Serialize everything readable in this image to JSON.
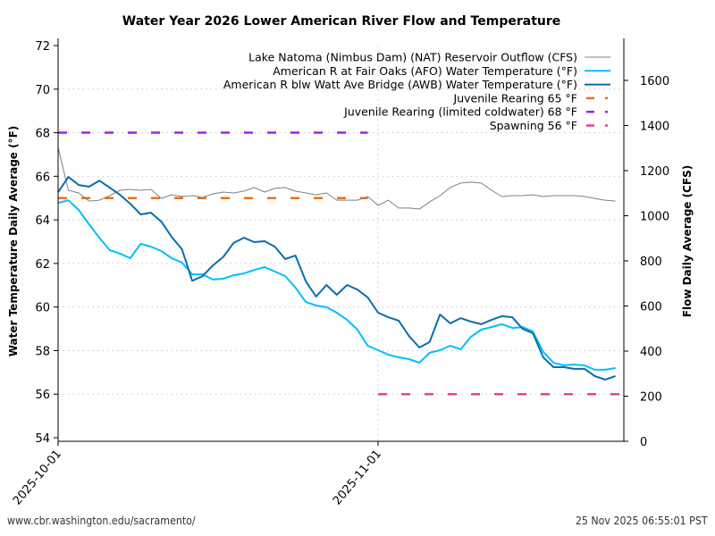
{
  "chart_data": {
    "type": "line",
    "title": "Water Year 2026 Lower American River Flow and Temperature",
    "ylabel": "Water Temperature Daily Average (°F)",
    "y2label": "Flow Daily Average (CFS)",
    "xlabel": "",
    "ylim": [
      54,
      72
    ],
    "y2lim": [
      0,
      1750
    ],
    "yticks": [
      54,
      56,
      58,
      60,
      62,
      64,
      66,
      68,
      70,
      72
    ],
    "y2ticks": [
      0,
      200,
      400,
      600,
      800,
      1000,
      1200,
      1400,
      1600
    ],
    "xticks": [
      "2025-10-01",
      "2025-11-01"
    ],
    "x_start": "2025-10-01",
    "x_range_days": [
      0,
      54.8
    ],
    "grid": true,
    "legend_position": "top-right",
    "series": [
      {
        "name": "Lake Natoma (Nimbus Dam) (NAT) Reservoir Outflow (CFS)",
        "axis": "right",
        "color": "#808080",
        "style": "solid-thin",
        "start_day": 0,
        "values": [
          1303,
          1113,
          1101,
          1065,
          1069,
          1089,
          1113,
          1117,
          1113,
          1117,
          1077,
          1093,
          1085,
          1089,
          1081,
          1097,
          1105,
          1101,
          1109,
          1125,
          1105,
          1121,
          1125,
          1109,
          1101,
          1093,
          1101,
          1069,
          1069,
          1069,
          1085,
          1046,
          1069,
          1034,
          1034,
          1030,
          1061,
          1089,
          1125,
          1145,
          1149,
          1145,
          1113,
          1085,
          1089,
          1089,
          1093,
          1085,
          1089,
          1089,
          1089,
          1085,
          1077,
          1069,
          1065
        ]
      },
      {
        "name": "American R at Fair Oaks (AFO) Water Temperature (°F)",
        "axis": "left",
        "color": "#00bfff",
        "style": "solid",
        "start_day": 0,
        "values": [
          64.78,
          64.9,
          64.45,
          63.8,
          63.18,
          62.61,
          62.45,
          62.24,
          62.9,
          62.77,
          62.57,
          62.24,
          62.04,
          61.5,
          61.5,
          61.26,
          61.3,
          61.46,
          61.54,
          61.7,
          61.83,
          61.63,
          61.42,
          60.89,
          60.23,
          60.07,
          59.99,
          59.74,
          59.41,
          58.96,
          58.22,
          58.02,
          57.81,
          57.69,
          57.61,
          57.44,
          57.9,
          58.02,
          58.22,
          58.06,
          58.63,
          58.96,
          59.08,
          59.21,
          59.04,
          59.08,
          58.88,
          57.94,
          57.44,
          57.32,
          57.36,
          57.32,
          57.12,
          57.12,
          57.2
        ]
      },
      {
        "name": "American R blw Watt Ave Bridge (AWB) Water Temperature (°F)",
        "axis": "left",
        "color": "#0a6eab",
        "style": "solid",
        "start_day": 0,
        "values": [
          65.27,
          65.97,
          65.6,
          65.52,
          65.8,
          65.48,
          65.15,
          64.74,
          64.25,
          64.33,
          63.92,
          63.22,
          62.65,
          61.2,
          61.42,
          61.91,
          62.3,
          62.94,
          63.18,
          62.98,
          63.02,
          62.77,
          62.2,
          62.36,
          61.18,
          60.48,
          61.01,
          60.56,
          61.01,
          60.8,
          60.44,
          59.74,
          59.53,
          59.37,
          58.67,
          58.14,
          58.39,
          59.66,
          59.25,
          59.49,
          59.33,
          59.21,
          59.41,
          59.58,
          59.53,
          59.0,
          58.8,
          57.69,
          57.24,
          57.24,
          57.16,
          57.16,
          56.83,
          56.67,
          56.83
        ]
      },
      {
        "name": "Juvenile Rearing 65 °F",
        "axis": "left",
        "color": "#e8701a",
        "style": "dashed",
        "threshold": 65,
        "day_range": [
          0,
          30
        ]
      },
      {
        "name": "Juvenile Rearing (limited coldwater) 68 °F",
        "axis": "left",
        "color": "#a020f0",
        "style": "dashed",
        "threshold": 68,
        "day_range": [
          0,
          30
        ]
      },
      {
        "name": "Spawning 56 °F",
        "axis": "left",
        "color": "#ee3d96",
        "style": "dashed",
        "threshold": 56,
        "day_range": [
          31,
          54.8
        ]
      }
    ]
  },
  "footer": {
    "url": "www.cbr.washington.edu/sacramento/",
    "timestamp": "25 Nov 2025 06:55:01 PST"
  }
}
